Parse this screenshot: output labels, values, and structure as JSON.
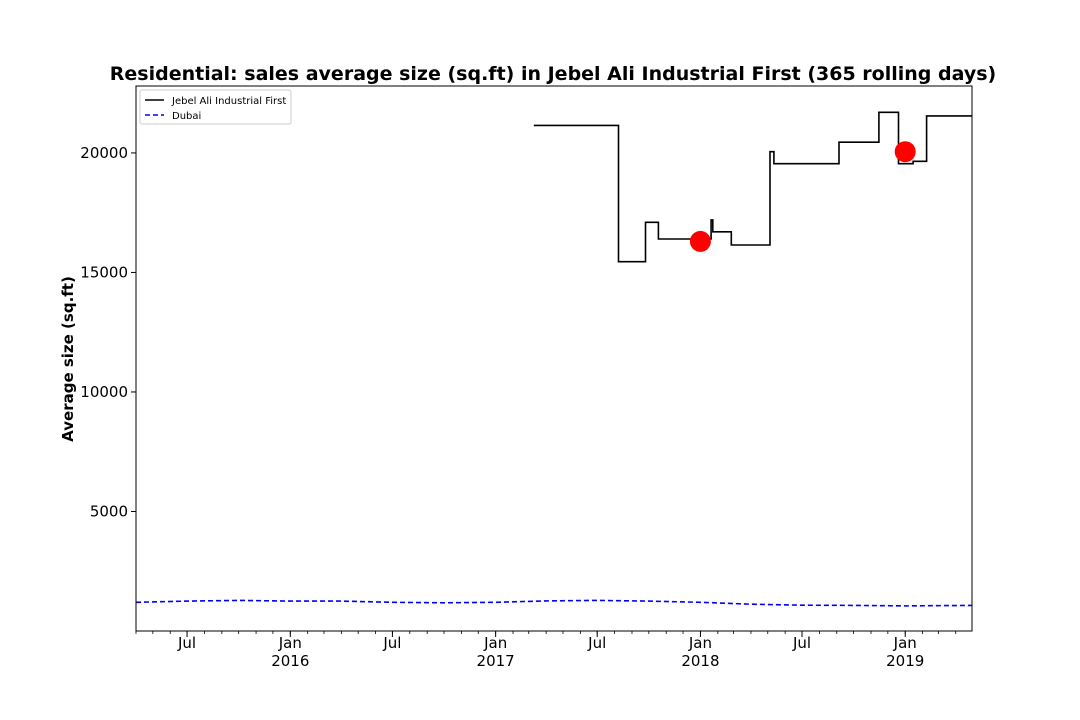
{
  "chart_data": {
    "type": "line",
    "title": "Residential: sales average size (sq.ft) in Jebel Ali Industrial First (365 rolling days)",
    "xlabel": "",
    "ylabel": "Average size (sq.ft)",
    "x_range": [
      "2015-04-01",
      "2019-04-30"
    ],
    "ylim": [
      0,
      22800
    ],
    "y_ticks": [
      5000,
      10000,
      15000,
      20000
    ],
    "x_ticks": [
      {
        "date": "2015-07-01",
        "label": "Jul",
        "year": ""
      },
      {
        "date": "2016-01-01",
        "label": "Jan",
        "year": "2016"
      },
      {
        "date": "2016-07-01",
        "label": "Jul",
        "year": ""
      },
      {
        "date": "2017-01-01",
        "label": "Jan",
        "year": "2017"
      },
      {
        "date": "2017-07-01",
        "label": "Jul",
        "year": ""
      },
      {
        "date": "2018-01-01",
        "label": "Jan",
        "year": "2018"
      },
      {
        "date": "2018-07-01",
        "label": "Jul",
        "year": ""
      },
      {
        "date": "2019-01-01",
        "label": "Jan",
        "year": "2019"
      }
    ],
    "legend_position": "top-left",
    "grid": false,
    "series": [
      {
        "name": "Jebel Ali Industrial First",
        "color": "#000000",
        "style": "solid",
        "step": true,
        "points": [
          {
            "x": "2017-03-10",
            "y": 21150
          },
          {
            "x": "2017-08-08",
            "y": 15450
          },
          {
            "x": "2017-09-25",
            "y": 17100
          },
          {
            "x": "2017-10-18",
            "y": 16400
          },
          {
            "x": "2018-01-20",
            "y": 17200
          },
          {
            "x": "2018-01-23",
            "y": 16700
          },
          {
            "x": "2018-02-25",
            "y": 16150
          },
          {
            "x": "2018-05-05",
            "y": 20050
          },
          {
            "x": "2018-05-12",
            "y": 19550
          },
          {
            "x": "2018-09-05",
            "y": 20450
          },
          {
            "x": "2018-11-15",
            "y": 21700
          },
          {
            "x": "2018-12-20",
            "y": 19550
          },
          {
            "x": "2019-01-15",
            "y": 19650
          },
          {
            "x": "2019-02-08",
            "y": 21550
          },
          {
            "x": "2019-04-30",
            "y": 21550
          }
        ]
      },
      {
        "name": "Dubai",
        "color": "#0000ff",
        "style": "dashed",
        "step": false,
        "points": [
          {
            "x": "2015-04-01",
            "y": 1200
          },
          {
            "x": "2015-07-01",
            "y": 1250
          },
          {
            "x": "2015-10-01",
            "y": 1280
          },
          {
            "x": "2016-01-01",
            "y": 1250
          },
          {
            "x": "2016-04-01",
            "y": 1250
          },
          {
            "x": "2016-07-01",
            "y": 1200
          },
          {
            "x": "2016-10-01",
            "y": 1180
          },
          {
            "x": "2017-01-01",
            "y": 1200
          },
          {
            "x": "2017-04-01",
            "y": 1260
          },
          {
            "x": "2017-07-01",
            "y": 1280
          },
          {
            "x": "2017-10-01",
            "y": 1250
          },
          {
            "x": "2018-01-01",
            "y": 1200
          },
          {
            "x": "2018-04-01",
            "y": 1120
          },
          {
            "x": "2018-07-01",
            "y": 1080
          },
          {
            "x": "2018-10-01",
            "y": 1070
          },
          {
            "x": "2019-01-01",
            "y": 1050
          },
          {
            "x": "2019-04-30",
            "y": 1070
          }
        ]
      }
    ],
    "markers": [
      {
        "x": "2018-01-01",
        "y": 16300,
        "color": "#ff0000"
      },
      {
        "x": "2019-01-01",
        "y": 20050,
        "color": "#ff0000"
      }
    ]
  }
}
